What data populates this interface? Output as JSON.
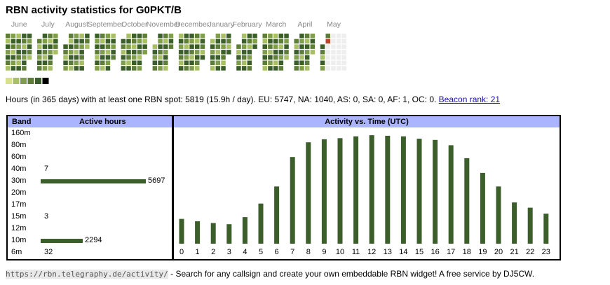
{
  "page": {
    "title": "RBN activity statistics for G0PKT/B",
    "summary_text": "Hours (in 365 days) with at least one RBN spot: 5819 (15.9h / day). EU: 5747, NA: 1040, AS: 0, SA: 0, AF: 1, OC: 0.",
    "beacon_rank_link": "Beacon rank: 21",
    "footer_url": "https://rbn.telegraphy.de/activity/",
    "footer_text": " - Search for any callsign and create your own embeddable RBN widget! A free service by DJ5CW."
  },
  "colors": {
    "accent_header": "#aab4ff",
    "bar": "#3b5e2b",
    "legend": [
      "#d8e08a",
      "#a8bf68",
      "#7f9d4c",
      "#5e7d39",
      "#3b5e2b",
      "#000000"
    ],
    "empty_day": "#eeeeee",
    "today": "#c0402a"
  },
  "calendar": {
    "months": [
      "June",
      "July",
      "August",
      "September",
      "October",
      "November",
      "December",
      "January",
      "February",
      "March",
      "April",
      "May"
    ],
    "weeks_per_month": [
      5,
      4,
      5,
      4,
      5,
      4,
      5,
      4,
      4,
      5,
      4,
      5
    ]
  },
  "chart_data": [
    {
      "type": "bar",
      "orientation": "horizontal",
      "title": "Active hours",
      "category_header": "Band",
      "categories": [
        "160m",
        "80m",
        "60m",
        "40m",
        "30m",
        "20m",
        "17m",
        "15m",
        "12m",
        "10m",
        "6m"
      ],
      "values": [
        null,
        null,
        null,
        7,
        5697,
        null,
        null,
        3,
        null,
        2294,
        32
      ],
      "value_labels": [
        "",
        "",
        "",
        "7",
        "5697",
        "",
        "",
        "3",
        "",
        "2294",
        "32"
      ]
    },
    {
      "type": "bar",
      "title": "Activity vs. Time (UTC)",
      "categories": [
        "0",
        "1",
        "2",
        "3",
        "4",
        "5",
        "6",
        "7",
        "8",
        "9",
        "10",
        "11",
        "12",
        "13",
        "14",
        "15",
        "16",
        "17",
        "18",
        "19",
        "20",
        "21",
        "22",
        "23"
      ],
      "values": [
        42,
        38,
        35,
        33,
        45,
        68,
        97,
        147,
        172,
        177,
        179,
        182,
        184,
        183,
        182,
        178,
        176,
        167,
        145,
        120,
        97,
        70,
        61,
        51
      ],
      "ylim": [
        0,
        190
      ],
      "grid": false
    }
  ]
}
